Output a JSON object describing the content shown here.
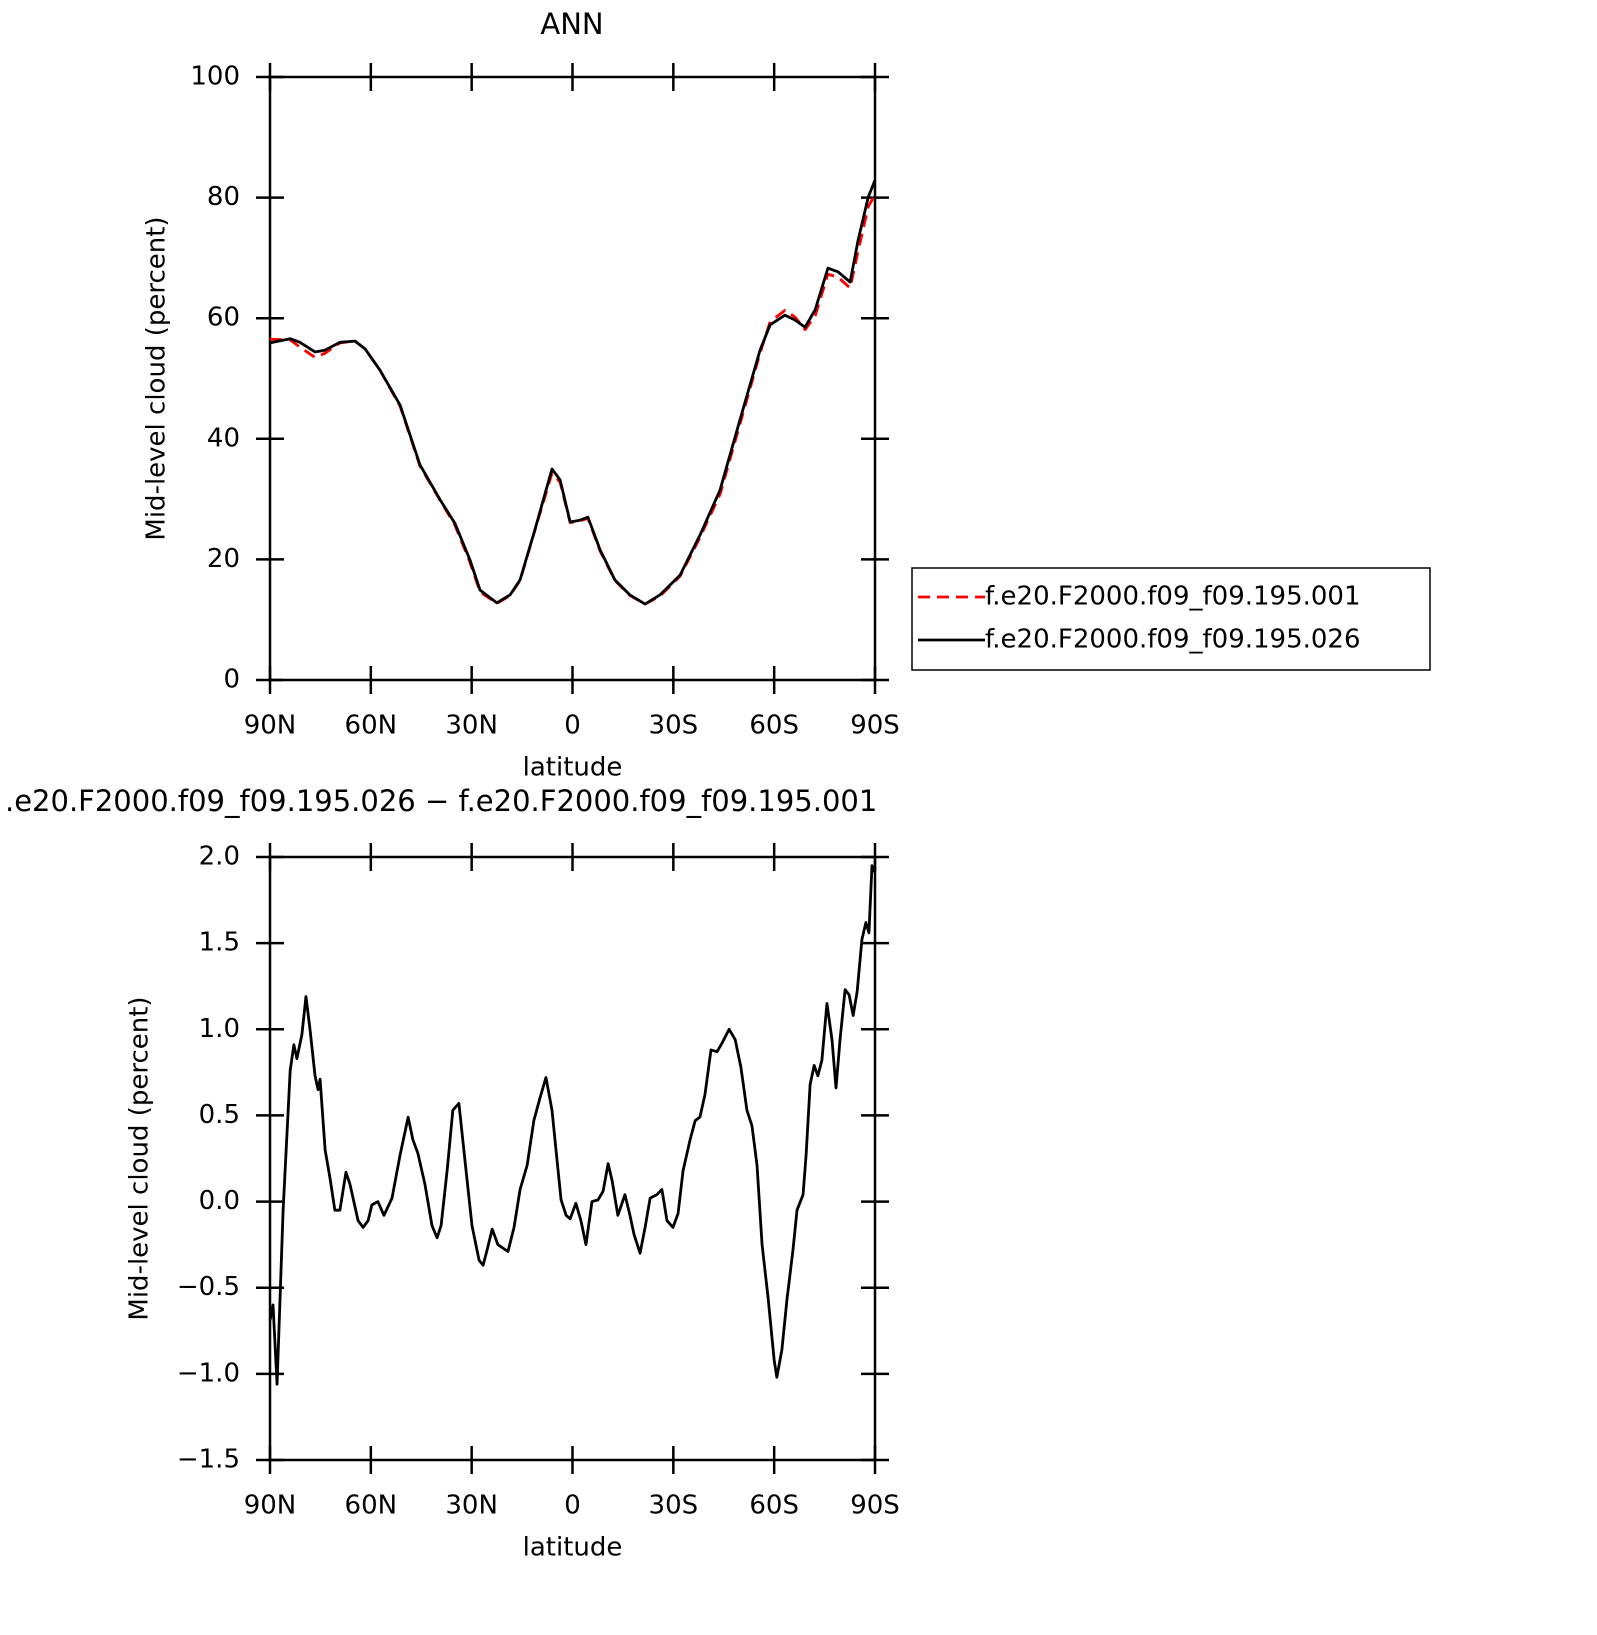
{
  "chart_data": [
    {
      "type": "line",
      "title": "ANN",
      "xlabel": "latitude",
      "ylabel": "Mid-level cloud (percent)",
      "x": [
        90,
        84.0,
        81.1,
        76.6,
        73.6,
        69.2,
        64.7,
        61.7,
        57.3,
        51.3,
        45.4,
        39.4,
        35.0,
        30.5,
        27.5,
        22.5,
        18.6,
        15.6,
        11.2,
        6.1,
        3.7,
        0.7,
        -2.2,
        -4.6,
        -8.2,
        -12.6,
        -17.1,
        -21.6,
        -26.0,
        -32.0,
        -37.9,
        -43.9,
        -49.8,
        -55.8,
        -58.8,
        -63.2,
        -66.2,
        -69.2,
        -72.2,
        -76.0,
        -79.0,
        -82.6,
        -85.0,
        -88.0,
        -90
      ],
      "series": [
        {
          "name": "f.e20.F2000.f09_f09.195.001",
          "color": "#ff0000",
          "dash": "dashed",
          "values": [
            56.5,
            56.4,
            55.2,
            53.5,
            54.2,
            55.9,
            56.2,
            54.9,
            51.4,
            45.4,
            35.5,
            29.8,
            25.7,
            19.5,
            14.6,
            12.7,
            14.0,
            16.5,
            24.8,
            34.3,
            32.8,
            26.1,
            26.4,
            26.8,
            21.4,
            16.5,
            14.0,
            12.6,
            13.9,
            17.2,
            23.6,
            30.8,
            42.4,
            54.2,
            59.4,
            61.3,
            60.2,
            58.1,
            60.4,
            67.3,
            66.8,
            65.0,
            71.2,
            78.5,
            80.5
          ]
        },
        {
          "name": "f.e20.F2000.f09_f09.195.026",
          "color": "#000000",
          "dash": "solid",
          "values": [
            55.9,
            56.6,
            56.0,
            54.4,
            54.7,
            56.0,
            56.2,
            54.9,
            51.4,
            45.6,
            35.7,
            29.9,
            26.0,
            19.9,
            14.9,
            12.8,
            14.1,
            16.6,
            24.9,
            35.0,
            33.2,
            26.2,
            26.5,
            27.0,
            21.6,
            16.6,
            14.1,
            12.6,
            14.1,
            17.4,
            24.0,
            31.5,
            43.1,
            54.7,
            58.9,
            60.5,
            59.7,
            58.5,
            61.4,
            68.3,
            67.7,
            66.0,
            73.0,
            80.1,
            82.9
          ]
        }
      ],
      "xlim": [
        90,
        -90
      ],
      "ylim": [
        0,
        100
      ],
      "xticks": [
        {
          "value": 90,
          "label": "90N"
        },
        {
          "value": 60,
          "label": "60N"
        },
        {
          "value": 30,
          "label": "30N"
        },
        0,
        {
          "value": -30,
          "label": "30S"
        },
        {
          "value": -60,
          "label": "60S"
        },
        {
          "value": -90,
          "label": "90S"
        }
      ],
      "yticks": [
        0,
        20,
        40,
        60,
        80,
        100
      ],
      "legend": "right"
    },
    {
      "type": "line",
      "title": ".e20.F2000.f09_f09.195.026 − f.e20.F2000.f09_f09.195.001",
      "xlabel": "latitude",
      "ylabel": "Mid-level cloud (percent)",
      "x": [
        90,
        89.1,
        87.9,
        86.1,
        84.0,
        82.9,
        82.0,
        80.5,
        79.3,
        78.1,
        76.6,
        75.7,
        75.1,
        73.6,
        72.1,
        70.7,
        69.2,
        67.4,
        66.2,
        63.8,
        62.3,
        60.8,
        59.7,
        57.9,
        56.1,
        53.7,
        51.3,
        48.9,
        47.5,
        46.0,
        43.9,
        41.8,
        40.3,
        39.1,
        37.3,
        35.6,
        33.8,
        32.0,
        29.9,
        27.8,
        26.6,
        25.4,
        23.9,
        22.2,
        19.2,
        17.4,
        15.6,
        13.5,
        11.5,
        9.7,
        7.9,
        6.1,
        4.6,
        3.4,
        1.9,
        0.7,
        -1.0,
        -2.5,
        -4.0,
        -5.8,
        -7.6,
        -9.1,
        -10.6,
        -11.8,
        -13.5,
        -15.6,
        -17.1,
        -18.3,
        -20.1,
        -21.6,
        -23.1,
        -25.1,
        -26.6,
        -28.1,
        -29.9,
        -31.4,
        -32.9,
        -35.0,
        -36.5,
        -37.9,
        -39.4,
        -41.2,
        -43.0,
        -44.5,
        -46.6,
        -48.4,
        -50.1,
        -51.9,
        -53.4,
        -54.9,
        -56.4,
        -58.2,
        -60.0,
        -60.8,
        -62.3,
        -63.8,
        -65.6,
        -66.8,
        -68.6,
        -69.5,
        -70.7,
        -71.9,
        -73.0,
        -74.2,
        -75.7,
        -77.2,
        -78.4,
        -79.6,
        -81.1,
        -82.3,
        -83.5,
        -84.7,
        -86.1,
        -87.3,
        -88.2,
        -89.1,
        -90
      ],
      "series": [
        {
          "color": "#000000",
          "dash": "solid",
          "values": [
            -0.69,
            -0.6,
            -1.06,
            -0.05,
            0.76,
            0.91,
            0.83,
            0.97,
            1.19,
            1.0,
            0.73,
            0.65,
            0.71,
            0.3,
            0.13,
            -0.05,
            -0.05,
            0.17,
            0.1,
            -0.11,
            -0.15,
            -0.11,
            -0.02,
            0.0,
            -0.08,
            0.02,
            0.27,
            0.49,
            0.36,
            0.28,
            0.1,
            -0.14,
            -0.21,
            -0.14,
            0.18,
            0.53,
            0.57,
            0.24,
            -0.14,
            -0.34,
            -0.37,
            -0.28,
            -0.16,
            -0.25,
            -0.29,
            -0.15,
            0.07,
            0.21,
            0.47,
            0.6,
            0.72,
            0.53,
            0.24,
            0.01,
            -0.08,
            -0.1,
            -0.01,
            -0.11,
            -0.25,
            0.0,
            0.01,
            0.06,
            0.22,
            0.12,
            -0.08,
            0.04,
            -0.08,
            -0.19,
            -0.3,
            -0.15,
            0.02,
            0.04,
            0.07,
            -0.11,
            -0.15,
            -0.07,
            0.18,
            0.36,
            0.47,
            0.49,
            0.62,
            0.88,
            0.87,
            0.92,
            1.0,
            0.94,
            0.78,
            0.53,
            0.44,
            0.21,
            -0.25,
            -0.56,
            -0.92,
            -1.02,
            -0.86,
            -0.57,
            -0.28,
            -0.05,
            0.04,
            0.27,
            0.68,
            0.79,
            0.73,
            0.82,
            1.15,
            0.94,
            0.66,
            0.94,
            1.23,
            1.2,
            1.08,
            1.22,
            1.52,
            1.62,
            1.56,
            1.95,
            1.91
          ]
        }
      ],
      "xlim": [
        90,
        -90
      ],
      "ylim": [
        -1.5,
        2
      ],
      "xticks": [
        {
          "value": 90,
          "label": "90N"
        },
        {
          "value": 60,
          "label": "60N"
        },
        {
          "value": 30,
          "label": "30N"
        },
        0,
        {
          "value": -30,
          "label": "30S"
        },
        {
          "value": -60,
          "label": "60S"
        },
        {
          "value": -90,
          "label": "90S"
        }
      ],
      "yticks": [
        {
          "value": -1.5,
          "label": "−1.5"
        },
        {
          "value": -1,
          "label": "−1.0"
        },
        {
          "value": -0.5,
          "label": "−0.5"
        },
        {
          "value": 0,
          "label": "0.0"
        },
        0.5,
        {
          "value": 1,
          "label": "1.0"
        },
        1.5,
        {
          "value": 2,
          "label": "2.0"
        }
      ]
    }
  ]
}
